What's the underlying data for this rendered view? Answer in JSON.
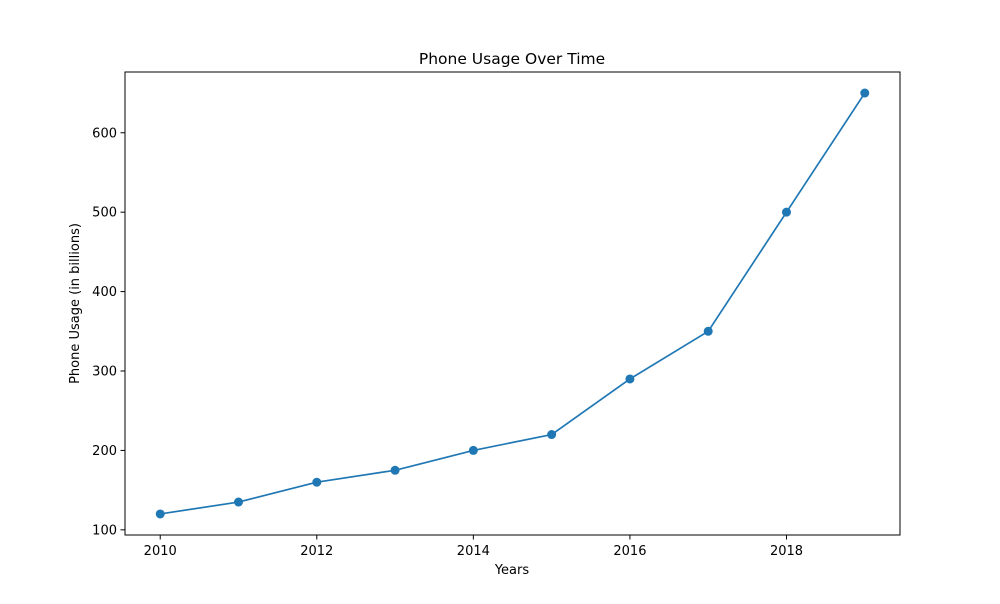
{
  "chart_data": {
    "type": "line",
    "title": "Phone Usage Over Time",
    "xlabel": "Years",
    "ylabel": "Phone Usage (in billions)",
    "x": [
      2010,
      2011,
      2012,
      2013,
      2014,
      2015,
      2016,
      2017,
      2018,
      2019
    ],
    "series": [
      {
        "values": [
          120,
          135,
          160,
          175,
          200,
          220,
          290,
          350,
          500,
          650
        ],
        "color": "#1f77b4",
        "marker": "circle"
      }
    ],
    "xlim": [
      2009.55,
      2019.45
    ],
    "ylim": [
      93.5,
      676.5
    ],
    "xticks": [
      2010,
      2012,
      2014,
      2016,
      2018
    ],
    "yticks": [
      100,
      200,
      300,
      400,
      500,
      600
    ],
    "grid": false,
    "legend": false
  }
}
